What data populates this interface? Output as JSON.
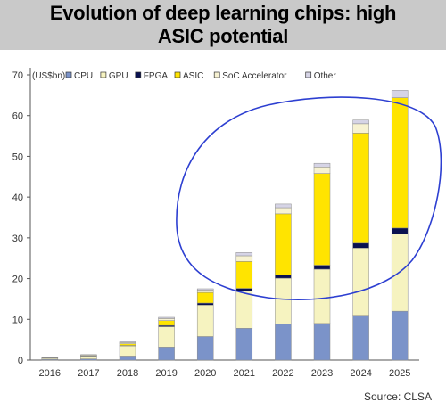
{
  "header": {
    "title": "Evolution of deep learning chips: high ASIC potential"
  },
  "source": "Source: CLSA",
  "chart_data": {
    "type": "bar",
    "stacked": true,
    "unit_label": "(US$bn)",
    "categories": [
      "2016",
      "2017",
      "2018",
      "2019",
      "2020",
      "2021",
      "2022",
      "2023",
      "2024",
      "2025"
    ],
    "ylim": [
      0,
      70
    ],
    "yticks": [
      0,
      10,
      20,
      30,
      40,
      50,
      60,
      70
    ],
    "grid": false,
    "legend_position": "top",
    "series": [
      {
        "name": "CPU",
        "color": "#7b93c9",
        "values": [
          0.2,
          0.3,
          1.0,
          3.2,
          5.8,
          7.8,
          8.8,
          9.0,
          11.0,
          12.0
        ]
      },
      {
        "name": "GPU",
        "color": "#f6f3c0",
        "values": [
          0.3,
          0.6,
          2.5,
          5.0,
          7.7,
          9.2,
          11.3,
          13.3,
          16.5,
          19.0
        ]
      },
      {
        "name": "FPGA",
        "color": "#0a1150",
        "values": [
          0.05,
          0.05,
          0.1,
          0.3,
          0.5,
          0.6,
          0.8,
          1.0,
          1.2,
          1.4
        ]
      },
      {
        "name": "ASIC",
        "color": "#ffe400",
        "values": [
          0.05,
          0.1,
          0.4,
          1.2,
          2.6,
          6.6,
          15.0,
          22.5,
          27.0,
          32.0
        ]
      },
      {
        "name": "SoC Accelerator",
        "color": "#f7f2d2",
        "values": [
          0.0,
          0.2,
          0.3,
          0.5,
          0.6,
          1.4,
          1.5,
          1.6,
          2.3,
          0.0
        ]
      },
      {
        "name": "Other",
        "color": "#d6d4e6",
        "values": [
          0.0,
          0.1,
          0.2,
          0.3,
          0.3,
          0.8,
          0.9,
          0.9,
          0.9,
          1.8
        ]
      }
    ]
  }
}
